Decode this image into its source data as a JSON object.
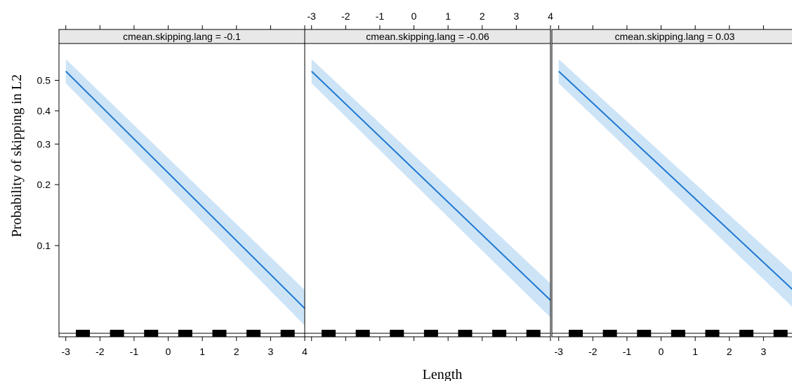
{
  "chart_data": {
    "type": "line",
    "xlabel": "Length",
    "ylabel": "Probability of skipping in L2",
    "xlim": [
      -3.2,
      4.0
    ],
    "ylim": [
      0.032,
      0.62
    ],
    "yscale": "logit",
    "x_ticks": [
      "-3",
      "-2",
      "-1",
      "0",
      "1",
      "2",
      "3",
      "4"
    ],
    "y_ticks": [
      "0.1",
      "0.2",
      "0.3",
      "0.4",
      "0.5"
    ],
    "grid": false,
    "legend": "none",
    "line_color": "#1f78d1",
    "band_color": "#cde4f7",
    "rug": [
      -2.5,
      -1.5,
      -0.5,
      0.5,
      1.5,
      2.5,
      3.5
    ],
    "panels": [
      {
        "label": "cmean.skipping.lang = -0.1",
        "x": [
          -3,
          4
        ],
        "y": [
          0.53,
          0.046
        ],
        "lower": [
          0.49,
          0.037
        ],
        "upper": [
          0.57,
          0.058
        ]
      },
      {
        "label": "cmean.skipping.lang = -0.06",
        "x": [
          -3,
          4
        ],
        "y": [
          0.53,
          0.051
        ],
        "lower": [
          0.49,
          0.041
        ],
        "upper": [
          0.57,
          0.063
        ]
      },
      {
        "label": "cmean.skipping.lang = 0.03",
        "x": [
          -3,
          4
        ],
        "y": [
          0.53,
          0.055
        ],
        "lower": [
          0.49,
          0.044
        ],
        "upper": [
          0.57,
          0.068
        ]
      }
    ]
  }
}
